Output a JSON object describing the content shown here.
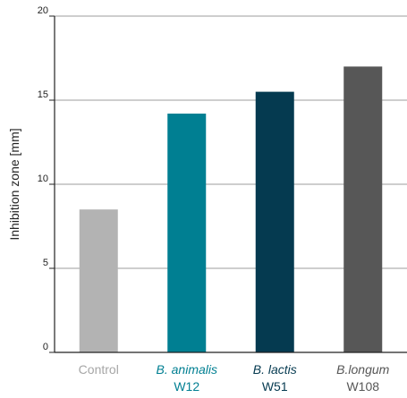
{
  "chart_data": {
    "type": "bar",
    "title": "",
    "xlabel": "",
    "ylabel": "Inhibition zone [mm]",
    "ylim": [
      0,
      20
    ],
    "yticks": [
      0,
      5,
      10,
      15,
      20
    ],
    "grid": true,
    "categories": [
      {
        "line1": "Control",
        "line1_italic": false,
        "line2": "",
        "color": "#b3b3b3",
        "label_color": "#a6a6a6"
      },
      {
        "line1": "B. animalis",
        "line1_italic": true,
        "line2": "W12",
        "color": "#007f92",
        "label_color": "#007f92"
      },
      {
        "line1": "B. lactis",
        "line1_italic": true,
        "line2": "W51",
        "color": "#053a50",
        "label_color": "#053a50"
      },
      {
        "line1": "B.longum",
        "line1_italic": true,
        "line2": "W108",
        "color": "#575757",
        "label_color": "#575757"
      }
    ],
    "values": [
      8.5,
      14.2,
      15.5,
      17.0
    ]
  }
}
